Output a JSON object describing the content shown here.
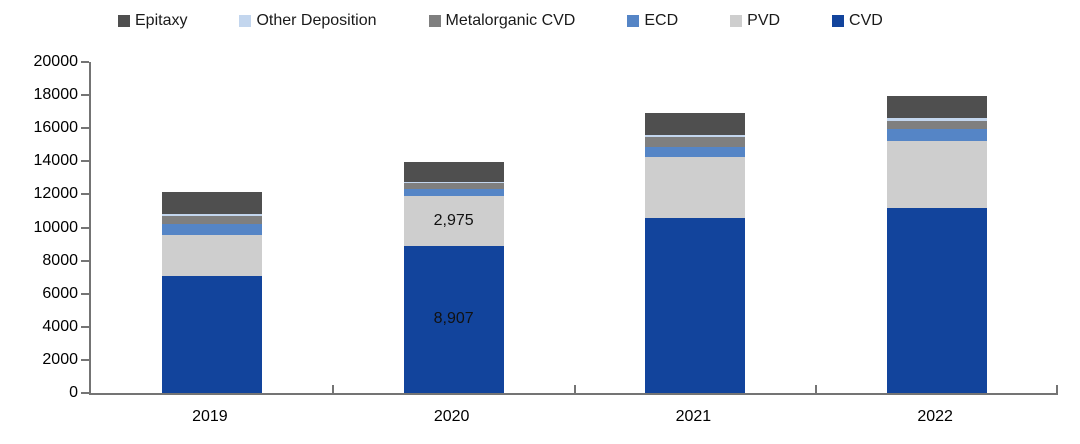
{
  "legend": {
    "items": [
      {
        "label": "Epitaxy",
        "color": "#4f4f4f"
      },
      {
        "label": "Other Deposition",
        "color": "#c3d6ee"
      },
      {
        "label": "Metalorganic CVD",
        "color": "#7f7f7f"
      },
      {
        "label": "ECD",
        "color": "#5585c6"
      },
      {
        "label": "PVD",
        "color": "#cecece"
      },
      {
        "label": "CVD",
        "color": "#12449c"
      }
    ]
  },
  "chart_data": {
    "type": "bar",
    "stacked": true,
    "grid": false,
    "legend_position": "top",
    "categories": [
      "2019",
      "2020",
      "2021",
      "2022"
    ],
    "series": [
      {
        "name": "CVD",
        "color": "#12449c",
        "values": [
          7100,
          8907,
          10590,
          11160
        ]
      },
      {
        "name": "PVD",
        "color": "#cecece",
        "values": [
          2470,
          2975,
          3690,
          4065
        ]
      },
      {
        "name": "ECD",
        "color": "#5585c6",
        "values": [
          650,
          420,
          580,
          705
        ]
      },
      {
        "name": "Metalorganic CVD",
        "color": "#7f7f7f",
        "values": [
          490,
          420,
          610,
          520
        ]
      },
      {
        "name": "Other Deposition",
        "color": "#c3d6ee",
        "values": [
          80,
          60,
          140,
          145
        ]
      },
      {
        "name": "Epitaxy",
        "color": "#4f4f4f",
        "values": [
          1340,
          1150,
          1330,
          1345
        ]
      }
    ],
    "data_labels": [
      {
        "category": "2020",
        "series": "CVD",
        "text": "8,907"
      },
      {
        "category": "2020",
        "series": "PVD",
        "text": "2,975"
      }
    ],
    "y_axis": {
      "min": 0,
      "max": 20000,
      "step": 2000,
      "tick_labels": [
        "0",
        "2000",
        "4000",
        "6000",
        "8000",
        "10000",
        "12000",
        "14000",
        "16000",
        "18000",
        "20000"
      ]
    }
  }
}
